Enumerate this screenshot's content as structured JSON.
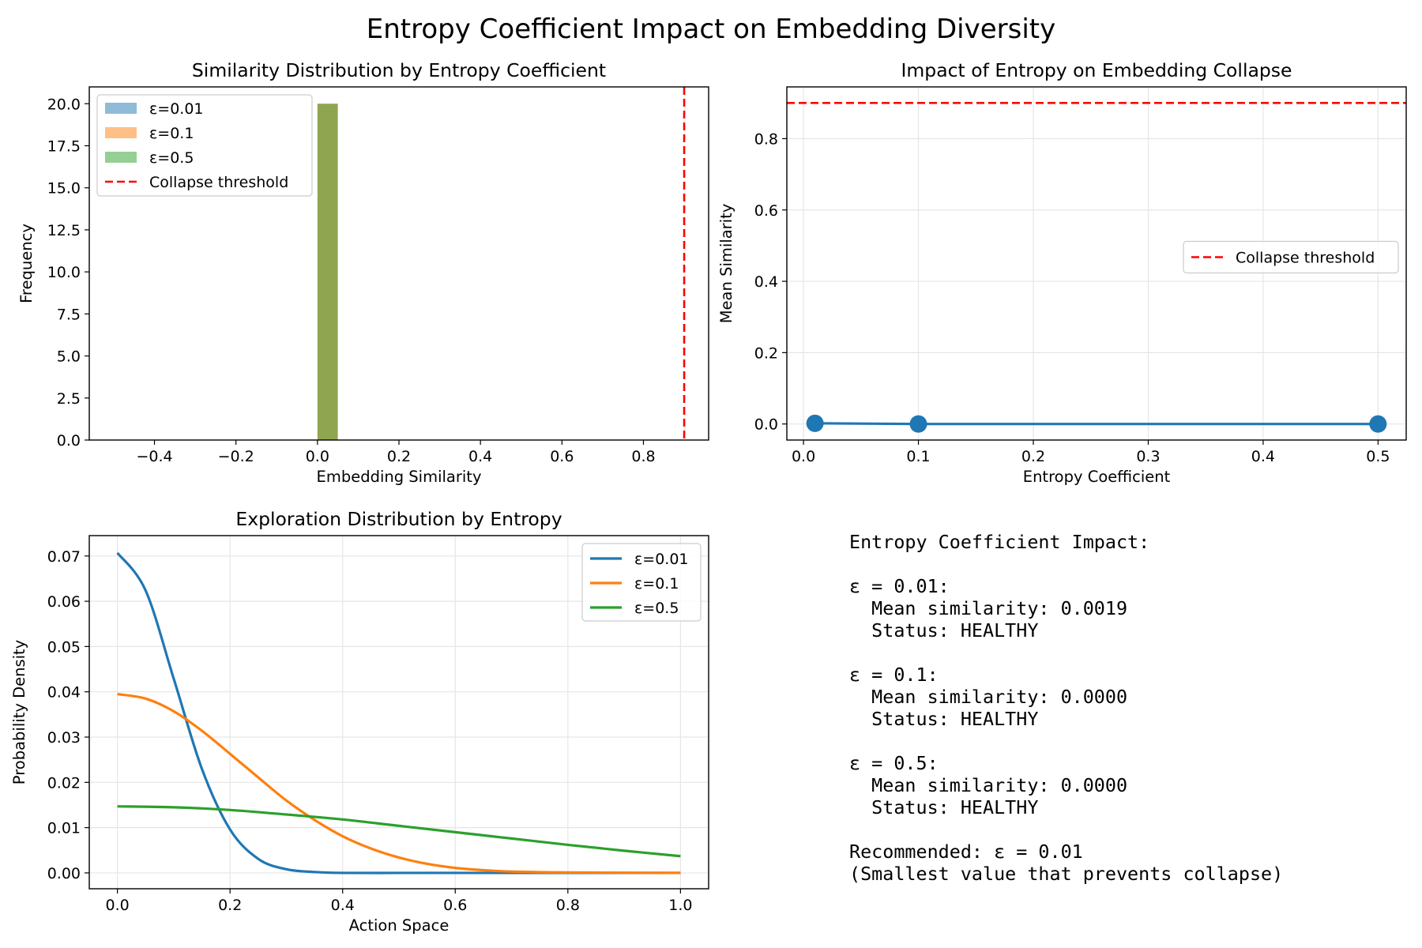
{
  "figure": {
    "suptitle": "Entropy Coefficient Impact on Embedding Diversity"
  },
  "chart_data": [
    {
      "type": "bar",
      "title": "Similarity Distribution by Entropy Coefficient",
      "xlabel": "Embedding Similarity",
      "ylabel": "Frequency",
      "xlim": [
        -0.56,
        0.96
      ],
      "ylim": [
        0,
        21
      ],
      "xticks": [
        -0.4,
        -0.2,
        0.0,
        0.2,
        0.4,
        0.6,
        0.8
      ],
      "xtick_labels": [
        "−0.4",
        "−0.2",
        "0.0",
        "0.2",
        "0.4",
        "0.6",
        "0.8"
      ],
      "yticks": [
        0.0,
        2.5,
        5.0,
        7.5,
        10.0,
        12.5,
        15.0,
        17.5,
        20.0
      ],
      "ytick_labels": [
        "0.0",
        "2.5",
        "5.0",
        "7.5",
        "10.0",
        "12.5",
        "15.0",
        "17.5",
        "20.0"
      ],
      "grid": false,
      "legend_position": "upper-left",
      "bars": [
        {
          "x_start": 0.0,
          "x_end": 0.05,
          "value": 20,
          "color": "#8fa54f",
          "label": "overlapping histograms"
        }
      ],
      "series": [
        {
          "name": "ε=0.01",
          "color": "#1f77b4",
          "alpha": 0.5
        },
        {
          "name": "ε=0.1",
          "color": "#ff7f0e",
          "alpha": 0.5
        },
        {
          "name": "ε=0.5",
          "color": "#2ca02c",
          "alpha": 0.5
        }
      ],
      "threshold": {
        "name": "Collapse threshold",
        "x": 0.9,
        "color": "#ff0000"
      }
    },
    {
      "type": "line",
      "title": "Impact of Entropy on Embedding Collapse",
      "xlabel": "Entropy Coefficient",
      "ylabel": "Mean Similarity",
      "xlim": [
        -0.0145,
        0.5245
      ],
      "ylim": [
        -0.045,
        0.945
      ],
      "xticks": [
        0.0,
        0.1,
        0.2,
        0.3,
        0.4,
        0.5
      ],
      "xtick_labels": [
        "0.0",
        "0.1",
        "0.2",
        "0.3",
        "0.4",
        "0.5"
      ],
      "yticks": [
        0.0,
        0.2,
        0.4,
        0.6,
        0.8
      ],
      "ytick_labels": [
        "0.0",
        "0.2",
        "0.4",
        "0.6",
        "0.8"
      ],
      "grid": true,
      "legend_position": "center-right",
      "series": [
        {
          "color": "#1f77b4",
          "x": [
            0.01,
            0.1,
            0.5
          ],
          "y": [
            0.0019,
            0.0,
            0.0
          ]
        }
      ],
      "threshold": {
        "name": "Collapse threshold",
        "y": 0.9,
        "color": "#ff0000"
      }
    },
    {
      "type": "line",
      "title": "Exploration Distribution by Entropy",
      "xlabel": "Action Space",
      "ylabel": "Probability Density",
      "xlim": [
        -0.05,
        1.05
      ],
      "ylim": [
        -0.0035,
        0.0745
      ],
      "xticks": [
        0.0,
        0.2,
        0.4,
        0.6,
        0.8,
        1.0
      ],
      "xtick_labels": [
        "0.0",
        "0.2",
        "0.4",
        "0.6",
        "0.8",
        "1.0"
      ],
      "yticks": [
        0.0,
        0.01,
        0.02,
        0.03,
        0.04,
        0.05,
        0.06,
        0.07
      ],
      "ytick_labels": [
        "0.00",
        "0.01",
        "0.02",
        "0.03",
        "0.04",
        "0.05",
        "0.06",
        "0.07"
      ],
      "grid": true,
      "legend_position": "upper-right",
      "series": [
        {
          "name": "ε=0.01",
          "color": "#1f77b4",
          "x": [
            0.0,
            0.05,
            0.1,
            0.15,
            0.2,
            0.25,
            0.3,
            0.35,
            0.4,
            0.5,
            0.6,
            0.8,
            1.0
          ],
          "y": [
            0.0707,
            0.0624,
            0.0429,
            0.023,
            0.0096,
            0.0031,
            0.0008,
            0.0002,
            0.0,
            0.0,
            0.0,
            0.0,
            0.0
          ]
        },
        {
          "name": "ε=0.1",
          "color": "#ff7f0e",
          "x": [
            0.0,
            0.05,
            0.1,
            0.15,
            0.2,
            0.25,
            0.3,
            0.35,
            0.4,
            0.45,
            0.5,
            0.55,
            0.6,
            0.65,
            0.7,
            0.8,
            1.0
          ],
          "y": [
            0.0395,
            0.0385,
            0.0357,
            0.0314,
            0.0263,
            0.0211,
            0.016,
            0.0117,
            0.0081,
            0.0054,
            0.0034,
            0.002,
            0.0011,
            0.0006,
            0.0003,
            0.0001,
            0.0
          ]
        },
        {
          "name": "ε=0.5",
          "color": "#2ca02c",
          "x": [
            0.0,
            0.1,
            0.2,
            0.3,
            0.4,
            0.5,
            0.6,
            0.7,
            0.8,
            0.9,
            1.0
          ],
          "y": [
            0.0147,
            0.0145,
            0.0139,
            0.0129,
            0.0118,
            0.0104,
            0.009,
            0.0076,
            0.0062,
            0.0049,
            0.0037
          ]
        }
      ]
    }
  ],
  "summary_text": {
    "lines": [
      "Entropy Coefficient Impact:",
      "",
      "ε = 0.01:",
      "  Mean similarity: 0.0019",
      "  Status: HEALTHY",
      "",
      "ε = 0.1:",
      "  Mean similarity: 0.0000",
      "  Status: HEALTHY",
      "",
      "ε = 0.5:",
      "  Mean similarity: 0.0000",
      "  Status: HEALTHY",
      "",
      "Recommended: ε = 0.01",
      "(Smallest value that prevents collapse)"
    ]
  }
}
